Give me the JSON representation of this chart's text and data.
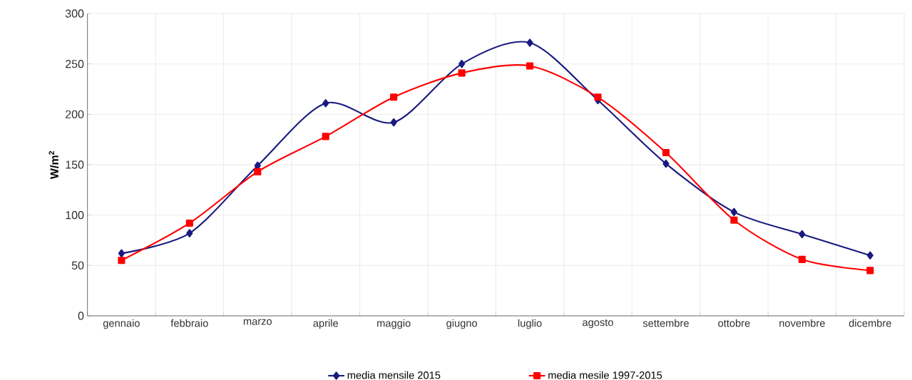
{
  "chart_data": {
    "type": "line",
    "ylabel": "W/m$^{2}$",
    "categories": [
      "gennaio",
      "febbraio",
      "marzo",
      "aprile",
      "maggio",
      "giugno",
      "luglio",
      "agosto",
      "settembre",
      "ottobre",
      "novembre",
      "dicembre"
    ],
    "series": [
      {
        "name": "media mensile 2015",
        "color": "#1a1a80",
        "marker": "diamond",
        "values": [
          62,
          82,
          149,
          211,
          192,
          250,
          271,
          214,
          151,
          103,
          81,
          60
        ]
      },
      {
        "name": "media mesile 1997-2015",
        "color": "#ff0000",
        "marker": "square",
        "values": [
          55,
          92,
          143,
          178,
          217,
          241,
          248,
          217,
          162,
          95,
          56,
          45
        ]
      }
    ],
    "ylim": [
      0,
      300
    ],
    "yticks": [
      0,
      50,
      100,
      150,
      200,
      250,
      300
    ],
    "grid": true,
    "legend": "bottom",
    "line_style": "solid"
  }
}
